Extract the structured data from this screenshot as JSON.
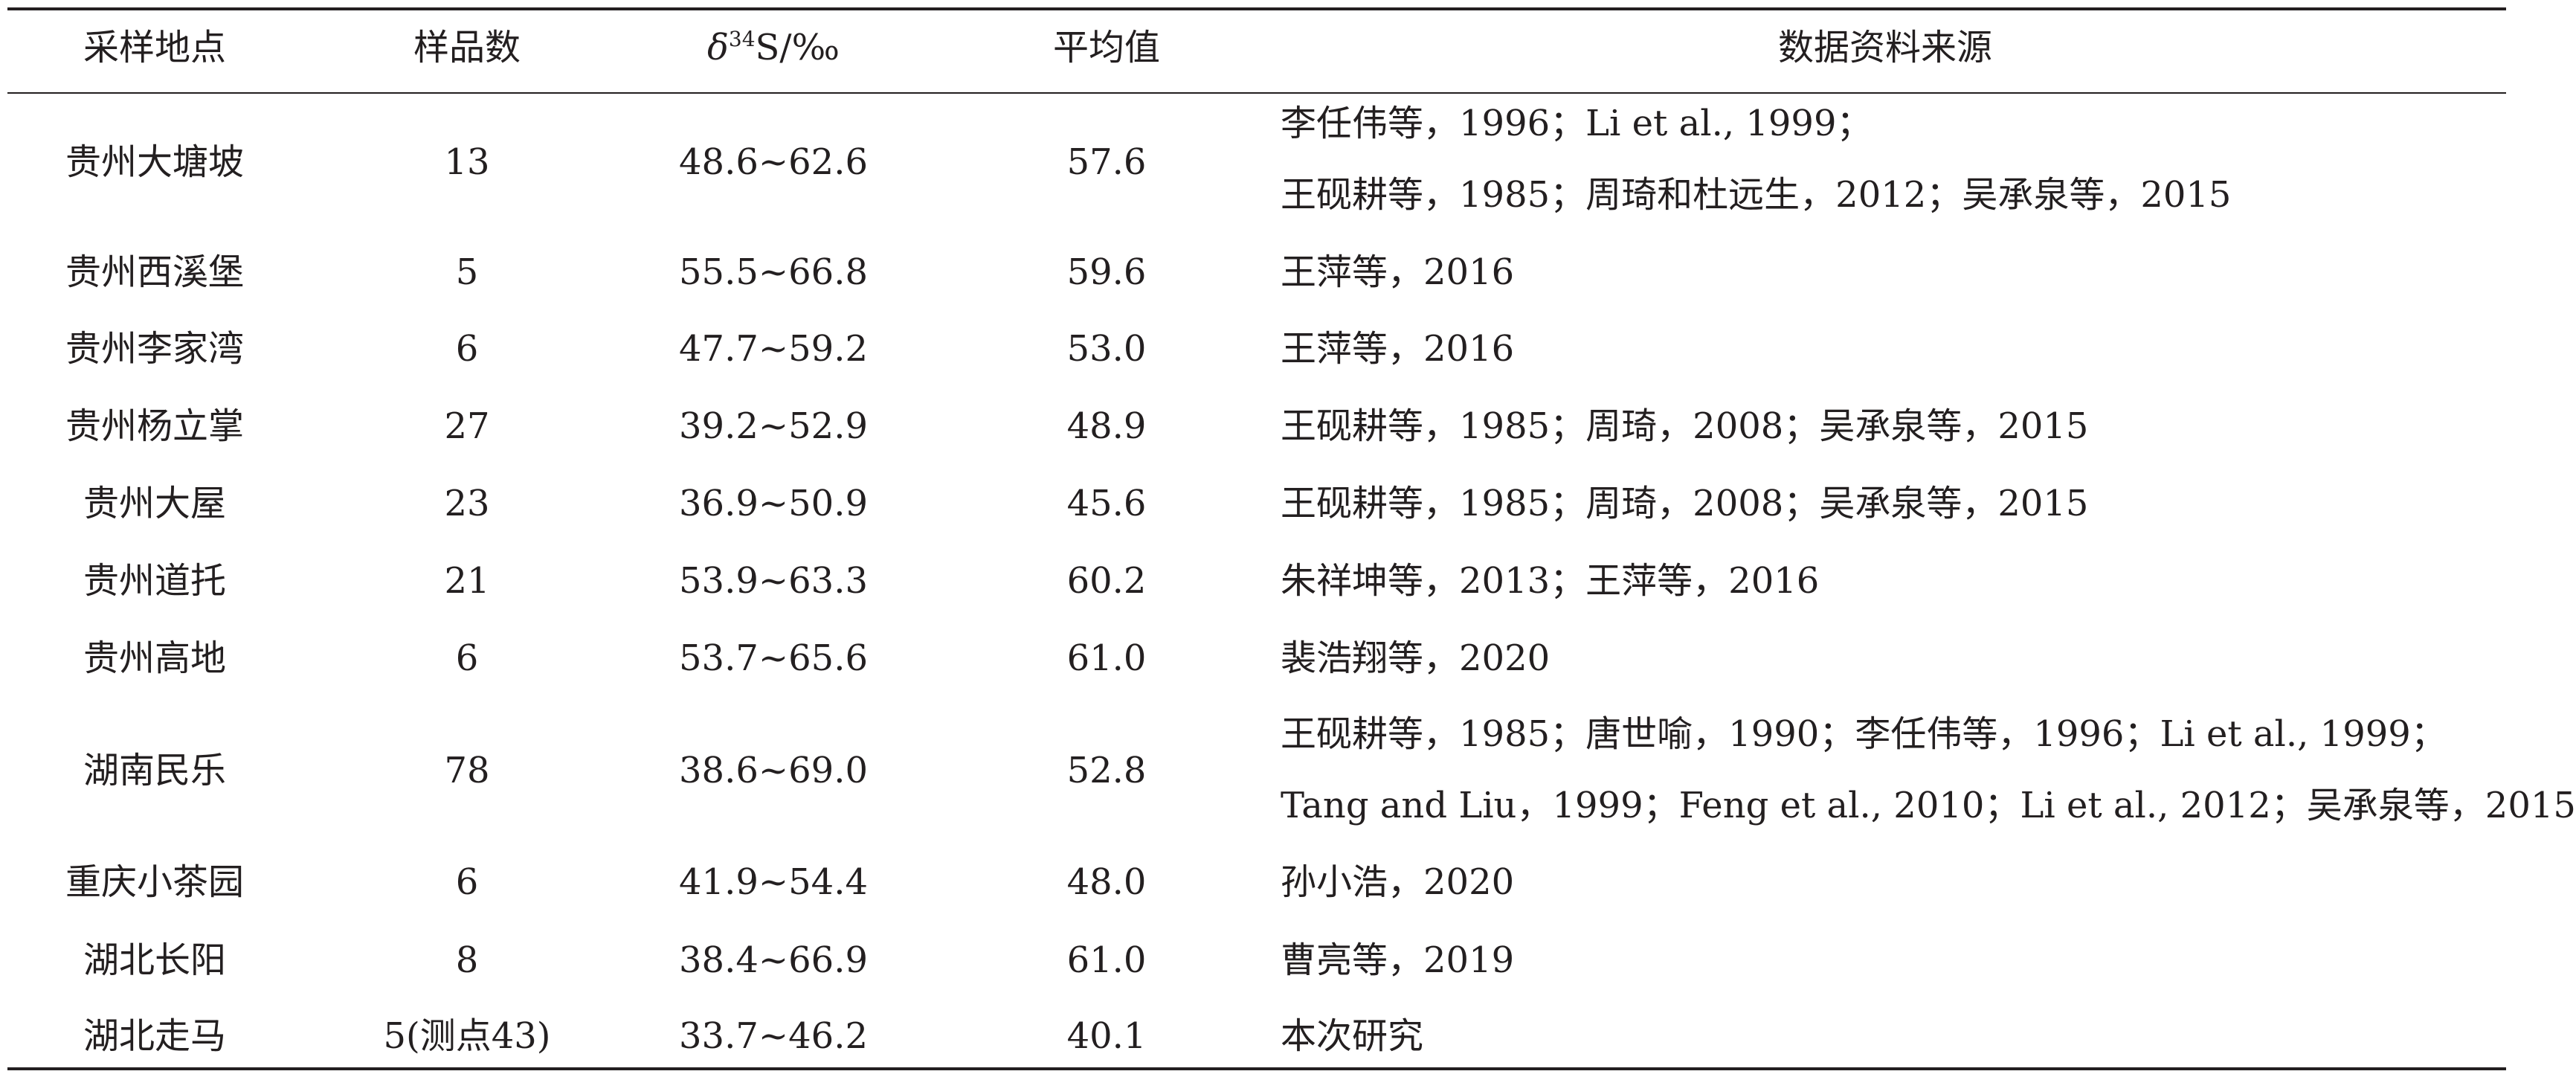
{
  "table": {
    "headers": {
      "site": "采样地点",
      "count": "样品数",
      "delta_symbol": "δ",
      "delta_sup": "34",
      "delta_rest": "S/‰",
      "mean": "平均值",
      "source": "数据资料来源"
    },
    "rows": [
      {
        "site": "贵州大塘坡",
        "count": "13",
        "range": "48.6~62.6",
        "mean": "57.6",
        "source": [
          "李任伟等，1996；Li et al., 1999；",
          "王砚耕等，1985；周琦和杜远生，2012；吴承泉等，2015"
        ]
      },
      {
        "site": "贵州西溪堡",
        "count": "5",
        "range": "55.5~66.8",
        "mean": "59.6",
        "source": [
          "王萍等，2016"
        ]
      },
      {
        "site": "贵州李家湾",
        "count": "6",
        "range": "47.7~59.2",
        "mean": "53.0",
        "source": [
          "王萍等，2016"
        ]
      },
      {
        "site": "贵州杨立掌",
        "count": "27",
        "range": "39.2~52.9",
        "mean": "48.9",
        "source": [
          "王砚耕等，1985；周琦，2008；吴承泉等，2015"
        ]
      },
      {
        "site": "贵州大屋",
        "count": "23",
        "range": "36.9~50.9",
        "mean": "45.6",
        "source": [
          "王砚耕等，1985；周琦，2008；吴承泉等，2015"
        ]
      },
      {
        "site": "贵州道托",
        "count": "21",
        "range": "53.9~63.3",
        "mean": "60.2",
        "source": [
          "朱祥坤等，2013；王萍等，2016"
        ]
      },
      {
        "site": "贵州高地",
        "count": "6",
        "range": "53.7~65.6",
        "mean": "61.0",
        "source": [
          "裴浩翔等，2020"
        ]
      },
      {
        "site": "湖南民乐",
        "count": "78",
        "range": "38.6~69.0",
        "mean": "52.8",
        "source": [
          "王砚耕等，1985；唐世喻，1990；李任伟等，1996；Li et al., 1999；",
          "Tang and Liu，1999；Feng et al., 2010；Li et al., 2012；吴承泉等，2015"
        ]
      },
      {
        "site": "重庆小茶园",
        "count": "6",
        "range": "41.9~54.4",
        "mean": "48.0",
        "source": [
          "孙小浩，2020"
        ]
      },
      {
        "site": "湖北长阳",
        "count": "8",
        "range": "38.4~66.9",
        "mean": "61.0",
        "source": [
          "曹亮等，2019"
        ]
      },
      {
        "site": "湖北走马",
        "count": "5(测点43)",
        "range": "33.7~46.2",
        "mean": "40.1",
        "source": [
          "本次研究"
        ]
      }
    ]
  }
}
